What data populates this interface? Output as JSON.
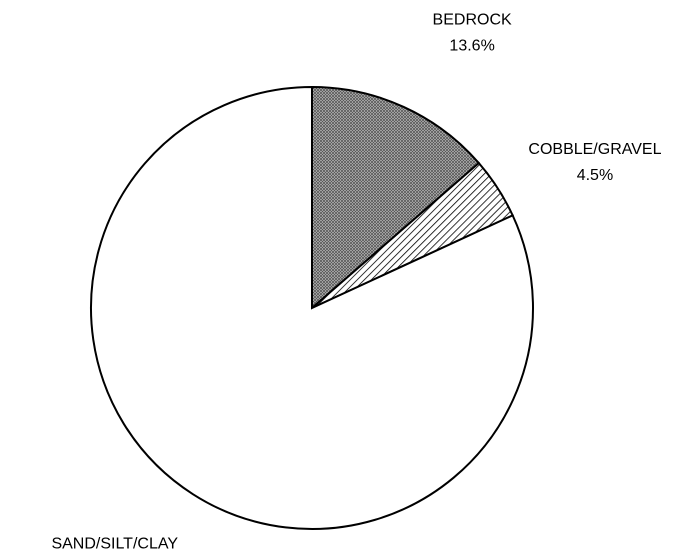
{
  "chart_data": {
    "type": "pie",
    "categories": [
      "BEDROCK",
      "COBBLE/GRAVEL",
      "SAND/SILT/CLAY"
    ],
    "values": [
      13.6,
      4.5,
      81.8
    ],
    "value_labels": [
      "13.6%",
      "4.5%",
      "81.8%"
    ]
  }
}
